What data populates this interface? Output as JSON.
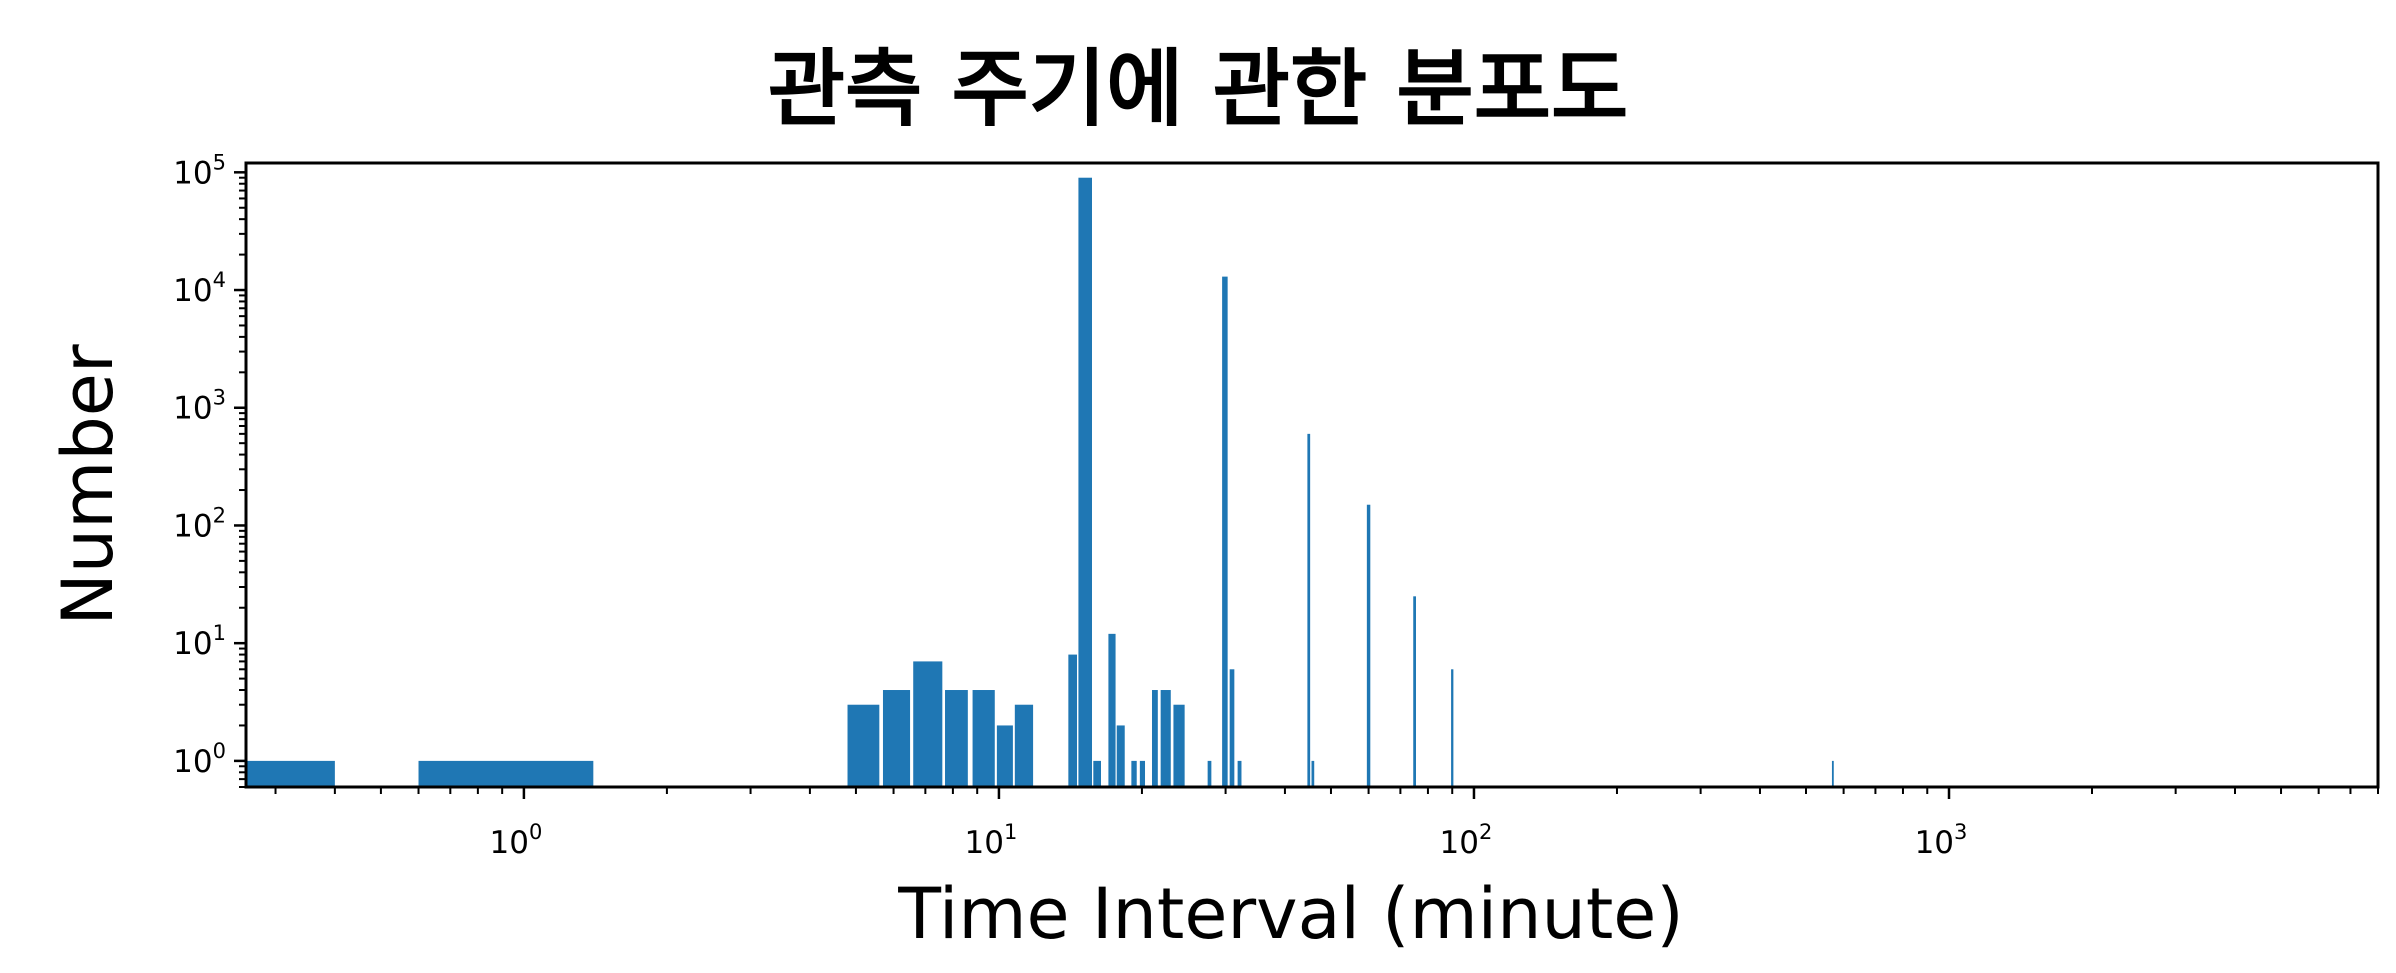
{
  "chart_data": {
    "type": "bar",
    "title": "관측 주기에 관한 분포도",
    "xlabel": "Time Interval (minute)",
    "ylabel": "Number",
    "x_scale": "log",
    "y_scale": "log",
    "xlim": [
      0.26,
      8000
    ],
    "ylim": [
      0.6,
      120000
    ],
    "x_ticks": [
      1,
      10,
      100,
      1000
    ],
    "y_ticks": [
      1,
      10,
      100,
      1000,
      10000,
      100000
    ],
    "tick_base": "10",
    "x_tick_exponents": [
      "0",
      "1",
      "2",
      "3"
    ],
    "y_tick_exponents": [
      "0",
      "1",
      "2",
      "3",
      "4",
      "5"
    ],
    "grid": false,
    "bar_color": "#1f77b4",
    "bars": [
      {
        "x0": 0.26,
        "x1": 0.4,
        "value": 1
      },
      {
        "x0": 0.6,
        "x1": 1.4,
        "value": 1
      },
      {
        "x0": 4.8,
        "x1": 5.6,
        "value": 3
      },
      {
        "x0": 5.7,
        "x1": 6.5,
        "value": 4
      },
      {
        "x0": 6.6,
        "x1": 7.6,
        "value": 7
      },
      {
        "x0": 7.7,
        "x1": 8.6,
        "value": 4
      },
      {
        "x0": 8.8,
        "x1": 9.8,
        "value": 4
      },
      {
        "x0": 9.9,
        "x1": 10.7,
        "value": 2
      },
      {
        "x0": 10.8,
        "x1": 11.8,
        "value": 3
      },
      {
        "x0": 14.0,
        "x1": 14.6,
        "value": 8
      },
      {
        "x0": 14.7,
        "x1": 15.7,
        "value": 90000
      },
      {
        "x0": 15.8,
        "x1": 16.4,
        "value": 1
      },
      {
        "x0": 17.0,
        "x1": 17.6,
        "value": 12
      },
      {
        "x0": 17.7,
        "x1": 18.4,
        "value": 2
      },
      {
        "x0": 19.0,
        "x1": 19.5,
        "value": 1
      },
      {
        "x0": 19.8,
        "x1": 20.3,
        "value": 1
      },
      {
        "x0": 21.0,
        "x1": 21.6,
        "value": 4
      },
      {
        "x0": 21.9,
        "x1": 23.0,
        "value": 4
      },
      {
        "x0": 23.3,
        "x1": 24.6,
        "value": 3
      },
      {
        "x0": 27.5,
        "x1": 28.0,
        "value": 1
      },
      {
        "x0": 29.5,
        "x1": 30.3,
        "value": 13000
      },
      {
        "x0": 30.6,
        "x1": 31.3,
        "value": 6
      },
      {
        "x0": 31.8,
        "x1": 32.4,
        "value": 1
      },
      {
        "x0": 44.6,
        "x1": 45.2,
        "value": 600
      },
      {
        "x0": 45.5,
        "x1": 46.1,
        "value": 1
      },
      {
        "x0": 59.5,
        "x1": 60.5,
        "value": 150
      },
      {
        "x0": 74.5,
        "x1": 75.5,
        "value": 25
      },
      {
        "x0": 89.5,
        "x1": 90.5,
        "value": 6
      },
      {
        "x0": 567,
        "x1": 572,
        "value": 1
      }
    ]
  }
}
